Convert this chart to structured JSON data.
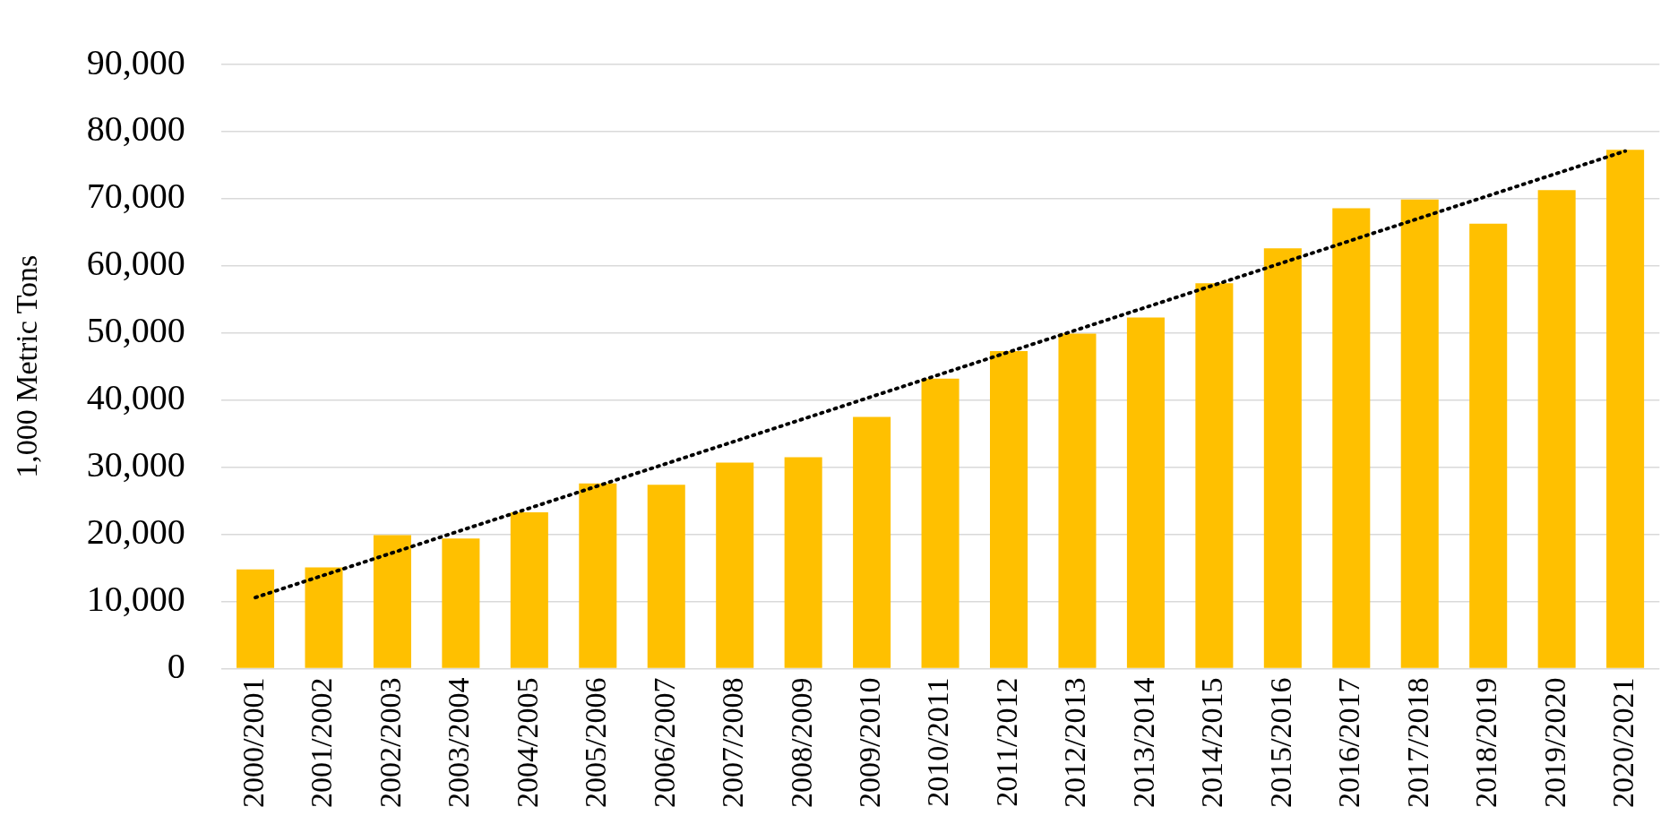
{
  "chart_data": {
    "type": "bar",
    "ylabel": "1,000 Metric Tons",
    "categories": [
      "2000/2001",
      "2001/2002",
      "2002/2003",
      "2003/2004",
      "2004/2005",
      "2005/2006",
      "2006/2007",
      "2007/2008",
      "2008/2009",
      "2009/2010",
      "2010/2011",
      "2011/2012",
      "2012/2013",
      "2013/2014",
      "2014/2015",
      "2015/2016",
      "2016/2017",
      "2017/2018",
      "2018/2019",
      "2019/2020",
      "2020/2021"
    ],
    "series": [
      {
        "color": "#ffc000",
        "values": [
          14800,
          15100,
          19900,
          19400,
          23300,
          27600,
          27400,
          30700,
          31500,
          37500,
          43200,
          47300,
          49900,
          52300,
          57400,
          62600,
          68600,
          69900,
          66300,
          71300,
          77300
        ]
      },
      {
        "type": "line",
        "color": "#000000",
        "line_style": "dotted",
        "marker": "none",
        "x": [
          "2000/2001",
          "2020/2021"
        ],
        "values": [
          10600,
          77100
        ]
      }
    ],
    "ylim": [
      0,
      90000
    ],
    "yticks": [
      {
        "value": 0,
        "label": "0"
      },
      {
        "value": 10000,
        "label": "10,000"
      },
      {
        "value": 20000,
        "label": "20,000"
      },
      {
        "value": 30000,
        "label": "30,000"
      },
      {
        "value": 40000,
        "label": "40,000"
      },
      {
        "value": 50000,
        "label": "50,000"
      },
      {
        "value": 60000,
        "label": "60,000"
      },
      {
        "value": 70000,
        "label": "70,000"
      },
      {
        "value": 80000,
        "label": "80,000"
      },
      {
        "value": 90000,
        "label": "90,000"
      }
    ],
    "grid": "y",
    "legend": false
  }
}
